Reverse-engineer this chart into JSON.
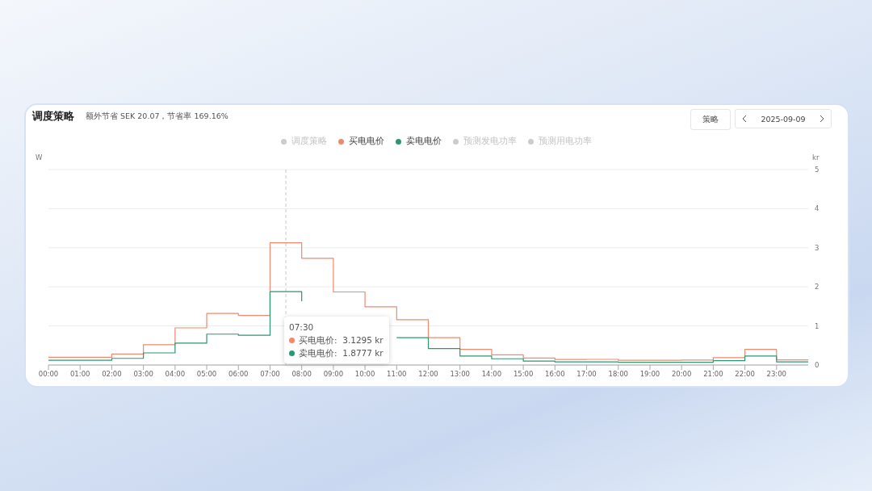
{
  "chart_data": {
    "type": "step",
    "title": "调度策略",
    "subtitle": "额外节省 SEK 20.07，节省率 169.16%",
    "ylabel": "W",
    "y2label": "kr",
    "x": [
      0,
      1,
      2,
      3,
      4,
      5,
      6,
      7,
      8,
      9,
      10,
      11,
      12,
      13,
      14,
      15,
      16,
      17,
      18,
      19,
      20,
      21,
      22,
      23,
      24
    ],
    "series": [
      {
        "name": "调度策略",
        "color": "#cccccc",
        "values": [
          null,
          null,
          null,
          null,
          null,
          null,
          null,
          null,
          null,
          null,
          null,
          null,
          null,
          null,
          null,
          null,
          null,
          null,
          null,
          null,
          null,
          null,
          null,
          null,
          null
        ]
      },
      {
        "name": "买电电价",
        "color": "#ee8a70",
        "axis": "y2",
        "values": [
          0.2,
          0.2,
          0.28,
          0.52,
          0.95,
          1.32,
          1.27,
          3.1295,
          2.73,
          1.87,
          1.49,
          1.16,
          0.7,
          0.4,
          0.26,
          0.18,
          0.14,
          0.145,
          0.12,
          0.12,
          0.125,
          0.19,
          0.4,
          0.13,
          0.13
        ]
      },
      {
        "name": "卖电电价",
        "color": "#2e9670",
        "axis": "y2",
        "values": [
          0.12,
          0.12,
          0.17,
          0.31,
          0.56,
          0.79,
          0.76,
          1.8777,
          1.63,
          null,
          null,
          0.7,
          0.42,
          0.23,
          0.16,
          0.1,
          0.08,
          0.08,
          0.07,
          0.07,
          0.07,
          0.11,
          0.23,
          0.08,
          0.08
        ]
      },
      {
        "name": "预测发电功率",
        "color": "#cccccc",
        "values": [
          null,
          null,
          null,
          null,
          null,
          null,
          null,
          null,
          null,
          null,
          null,
          null,
          null,
          null,
          null,
          null,
          null,
          null,
          null,
          null,
          null,
          null,
          null,
          null,
          null
        ]
      },
      {
        "name": "预测用电功率",
        "color": "#cccccc",
        "values": [
          null,
          null,
          null,
          null,
          null,
          null,
          null,
          null,
          null,
          null,
          null,
          null,
          null,
          null,
          null,
          null,
          null,
          null,
          null,
          null,
          null,
          null,
          null,
          null,
          null
        ]
      }
    ],
    "xlim": [
      0,
      24
    ],
    "xticks": [
      {
        "value": 0,
        "label": "00:00"
      },
      {
        "value": 1,
        "label": "01:00"
      },
      {
        "value": 2,
        "label": "02:00"
      },
      {
        "value": 3,
        "label": "03:00"
      },
      {
        "value": 4,
        "label": "04:00"
      },
      {
        "value": 5,
        "label": "05:00"
      },
      {
        "value": 6,
        "label": "06:00"
      },
      {
        "value": 7,
        "label": "07:00"
      },
      {
        "value": 8,
        "label": "08:00"
      },
      {
        "value": 9,
        "label": "09:00"
      },
      {
        "value": 10,
        "label": "10:00"
      },
      {
        "value": 11,
        "label": "11:00"
      },
      {
        "value": 12,
        "label": "12:00"
      },
      {
        "value": 13,
        "label": "13:00"
      },
      {
        "value": 14,
        "label": "14:00"
      },
      {
        "value": 15,
        "label": "15:00"
      },
      {
        "value": 16,
        "label": "16:00"
      },
      {
        "value": 17,
        "label": "17:00"
      },
      {
        "value": 18,
        "label": "18:00"
      },
      {
        "value": 19,
        "label": "19:00"
      },
      {
        "value": 20,
        "label": "20:00"
      },
      {
        "value": 21,
        "label": "21:00"
      },
      {
        "value": 22,
        "label": "22:00"
      },
      {
        "value": 23,
        "label": "23:00"
      }
    ],
    "y2lim": [
      0,
      5
    ],
    "y2ticks": [
      0,
      1,
      2,
      3,
      4,
      5
    ],
    "grid": "y",
    "legend": "top",
    "marker": "none",
    "line_style": "solid",
    "ref_lines": [
      {
        "axis": "x",
        "value": 7.5,
        "color": "#c8c8c8",
        "line_style": "dashed"
      }
    ],
    "annotations": [
      "策略",
      "2025-09-09",
      "07:30",
      "买电电价:  3.1295 kr",
      "卖电电价:  1.8777 kr"
    ]
  }
}
